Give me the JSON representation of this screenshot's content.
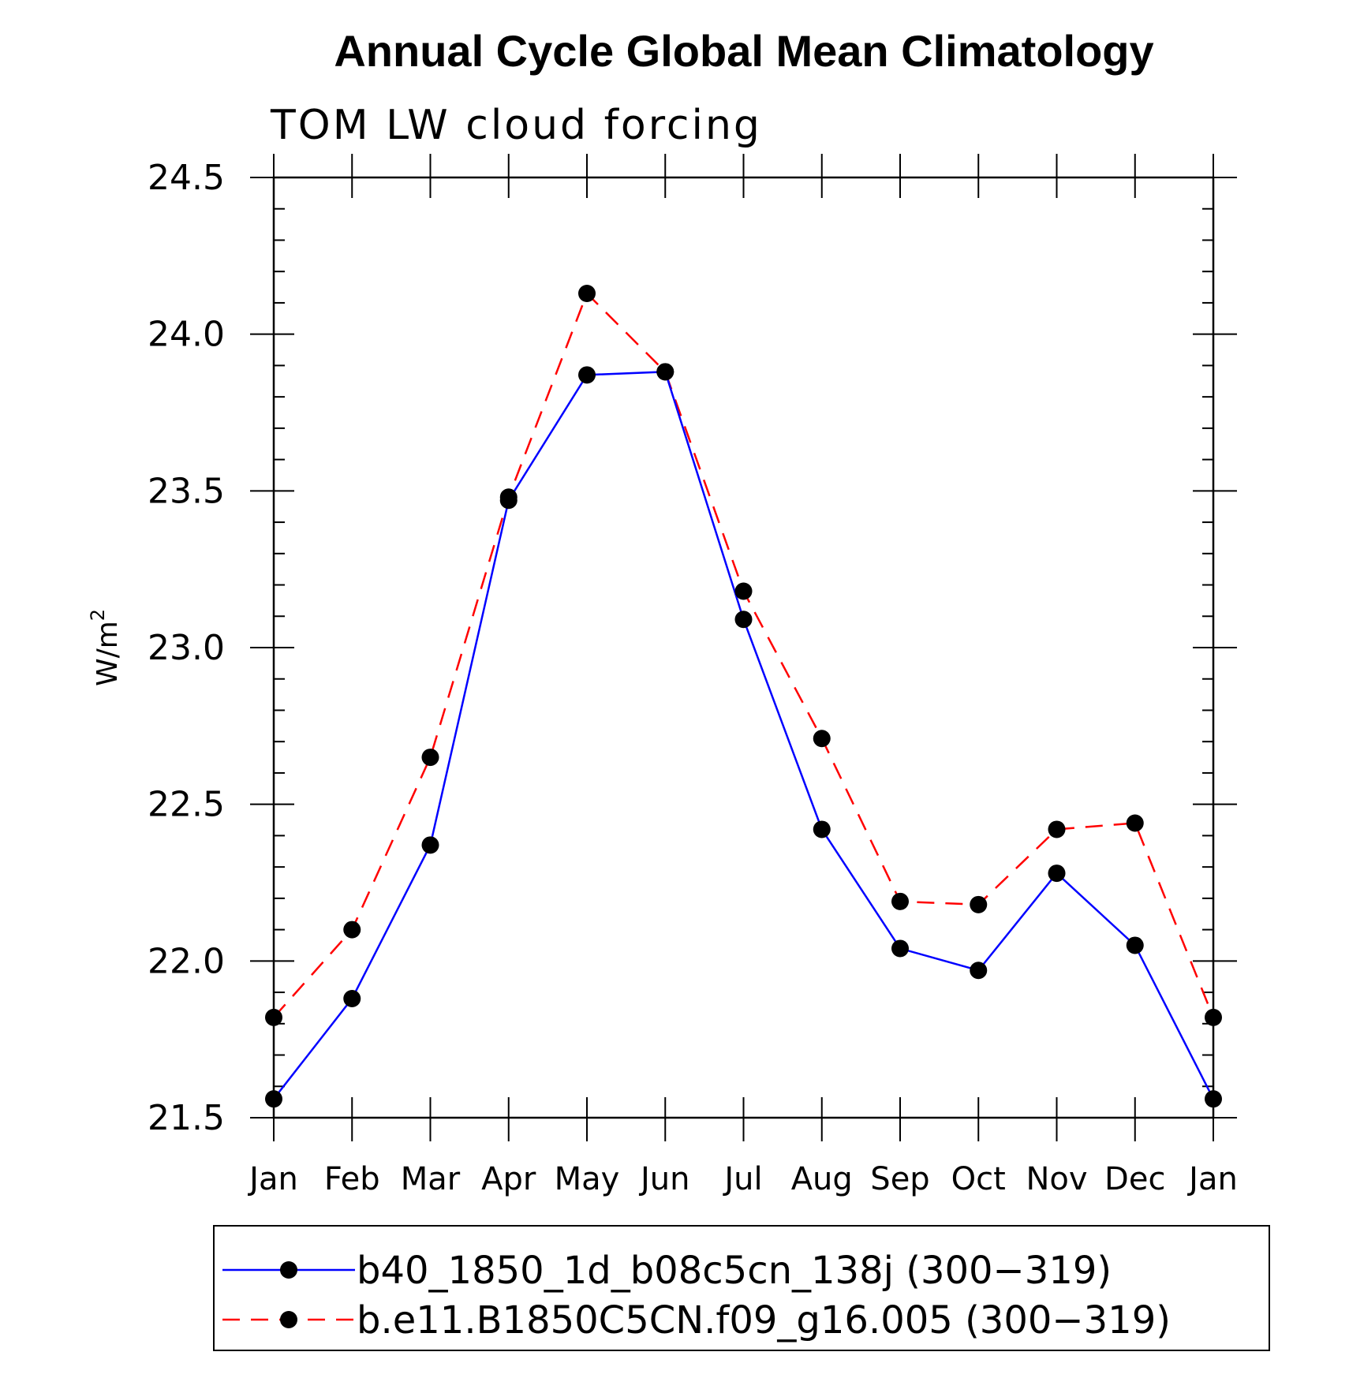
{
  "chart_data": {
    "type": "line",
    "title": "Annual Cycle Global Mean Climatology",
    "subtitle": "TOM LW cloud forcing",
    "ylabel": "W/m",
    "ylabel_superscript": "2",
    "xlabel": "",
    "ylim": [
      21.5,
      24.5
    ],
    "yticks": [
      "24.5",
      "24.0",
      "23.5",
      "23.0",
      "22.5",
      "22.0",
      "21.5"
    ],
    "categories": [
      "Jan",
      "Feb",
      "Mar",
      "Apr",
      "May",
      "Jun",
      "Jul",
      "Aug",
      "Sep",
      "Oct",
      "Nov",
      "Dec",
      "Jan"
    ],
    "legend_placement": "bottom",
    "series": [
      {
        "name": "b40_1850_1d_b08c5cn_138j (300−319)",
        "color": "#0000ff",
        "style": "solid",
        "values": [
          21.56,
          21.88,
          22.37,
          23.47,
          23.87,
          23.88,
          23.09,
          22.42,
          22.04,
          21.97,
          22.28,
          22.05,
          21.56
        ]
      },
      {
        "name": "b.e11.B1850C5CN.f09_g16.005 (300−319)",
        "color": "#ff0000",
        "style": "dashed",
        "values": [
          21.82,
          22.1,
          22.65,
          23.48,
          24.13,
          23.88,
          23.18,
          22.71,
          22.19,
          22.18,
          22.42,
          22.44,
          21.82
        ]
      }
    ],
    "marker_color": "#000000"
  }
}
